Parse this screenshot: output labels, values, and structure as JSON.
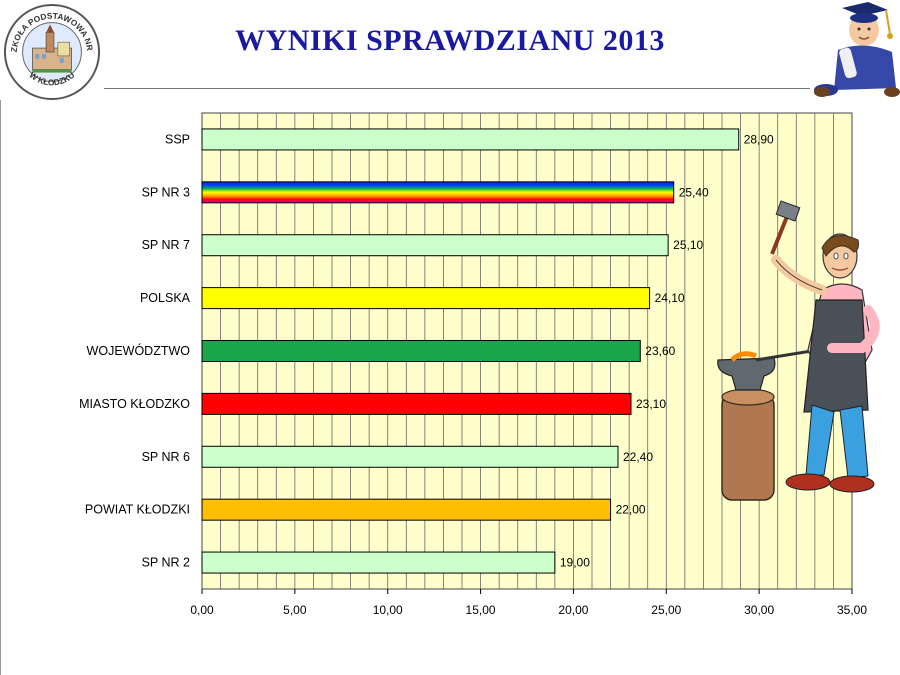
{
  "header": {
    "title": "WYNIKI SPRAWDZIANU 2013",
    "logo_text_top": "SZKOŁA PODSTAWOWA NR 3",
    "logo_text_bottom": "W KŁODZKU"
  },
  "chart_data": {
    "type": "bar",
    "orientation": "horizontal",
    "title": "WYNIKI SPRAWDZIANU 2013",
    "categories": [
      "SSP",
      "SP NR 3",
      "SP NR 7",
      "POLSKA",
      "WOJEWÓDZTWO",
      "MIASTO KŁODZKO",
      "SP NR 6",
      "POWIAT KŁODZKI",
      "SP NR 2"
    ],
    "values": [
      28.9,
      25.4,
      25.1,
      24.1,
      23.6,
      23.1,
      22.4,
      22.0,
      19.0
    ],
    "value_labels": [
      "28,90",
      "25,40",
      "25,10",
      "24,10",
      "23,60",
      "23,10",
      "22,40",
      "22,00",
      "19,00"
    ],
    "bar_colors": [
      "#ccffcc",
      "rainbow",
      "#ccffcc",
      "#ffff00",
      "#1aa64a",
      "#ff0000",
      "#ccffcc",
      "#ffbf00",
      "#ccffcc"
    ],
    "xlim": [
      0,
      35
    ],
    "xticks": [
      0,
      5,
      10,
      15,
      20,
      25,
      30,
      35
    ],
    "xtick_labels": [
      "0,00",
      "5,00",
      "10,00",
      "15,00",
      "20,00",
      "25,00",
      "30,00",
      "35,00"
    ],
    "plot_background": "#ffffcc",
    "grid": true,
    "legend": "none"
  }
}
